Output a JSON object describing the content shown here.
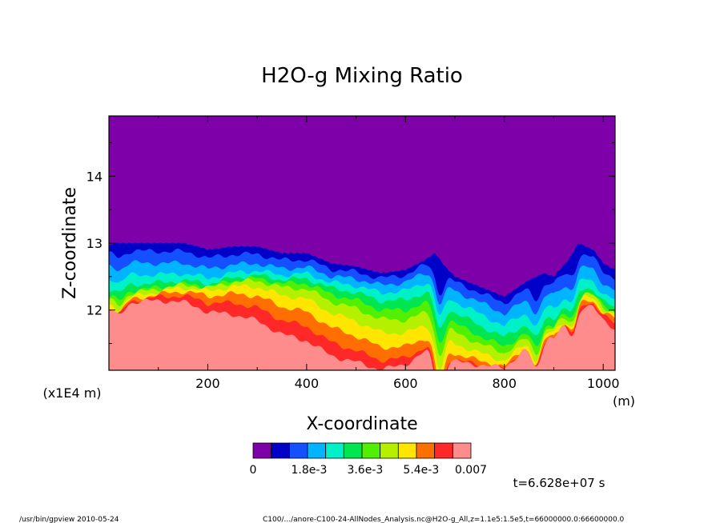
{
  "chart_data": {
    "type": "heatmap",
    "title": "H2O-g Mixing Ratio",
    "xlabel": "X-coordinate",
    "ylabel": "Z-coordinate",
    "x_unit": "(m)",
    "y_unit": "(x1E4 m)",
    "xlim": [
      0,
      1024
    ],
    "ylim": [
      11.1,
      14.9
    ],
    "xticks": [
      200,
      400,
      600,
      800,
      1000
    ],
    "yticks": [
      12,
      13,
      14
    ],
    "levels": [
      0,
      0.0006,
      0.0012,
      0.0018,
      0.0024,
      0.003,
      0.0036,
      0.0042,
      0.0048,
      0.0054,
      0.006,
      0.0065,
      0.007
    ],
    "colorbar_labels": [
      "0",
      "1.8e-3",
      "3.6e-3",
      "5.4e-3",
      "0.007"
    ],
    "colors": [
      "#7d00a8",
      "#0000c8",
      "#1450ff",
      "#00b4ff",
      "#00f0c8",
      "#00e650",
      "#50f000",
      "#b4f000",
      "#ffe600",
      "#ff6e00",
      "#ff2828",
      "#ff8c8c"
    ],
    "top_boundary": {
      "x": [
        0,
        10,
        40,
        60,
        100,
        150,
        180,
        200,
        250,
        300,
        350,
        380,
        400,
        450,
        500,
        550,
        600,
        640,
        660,
        680,
        700,
        750,
        800,
        820,
        850,
        880,
        900,
        930,
        950,
        980,
        1000,
        1024
      ],
      "z": [
        12.95,
        13.0,
        13.0,
        13.0,
        13.0,
        13.0,
        12.95,
        12.9,
        12.95,
        12.95,
        12.85,
        12.85,
        12.85,
        12.7,
        12.65,
        12.55,
        12.6,
        12.75,
        12.85,
        12.65,
        12.5,
        12.35,
        12.2,
        12.3,
        12.45,
        12.55,
        12.5,
        12.75,
        13.0,
        12.9,
        12.7,
        12.6
      ]
    },
    "band_thickness": [
      0.1,
      0.14,
      0.14,
      0.12,
      0.1,
      0.08,
      0.12,
      0.13,
      0.12,
      0.1,
      0.18
    ],
    "anomalies": [
      {
        "x": 668,
        "depth": 0.65
      },
      {
        "x": 865,
        "depth": 0.35
      },
      {
        "x": 940,
        "depth": 0.3
      },
      {
        "x": 20,
        "depth": 0.15
      }
    ],
    "time_label": "t=6.628e+07 s"
  },
  "footer": {
    "left": "/usr/bin/gpview  2010-05-24",
    "right": "C100/.../anore-C100-24-AllNodes_Analysis.nc@H2O-g_All,z=1.1e5:1.5e5,t=66000000.0:66600000.0"
  }
}
